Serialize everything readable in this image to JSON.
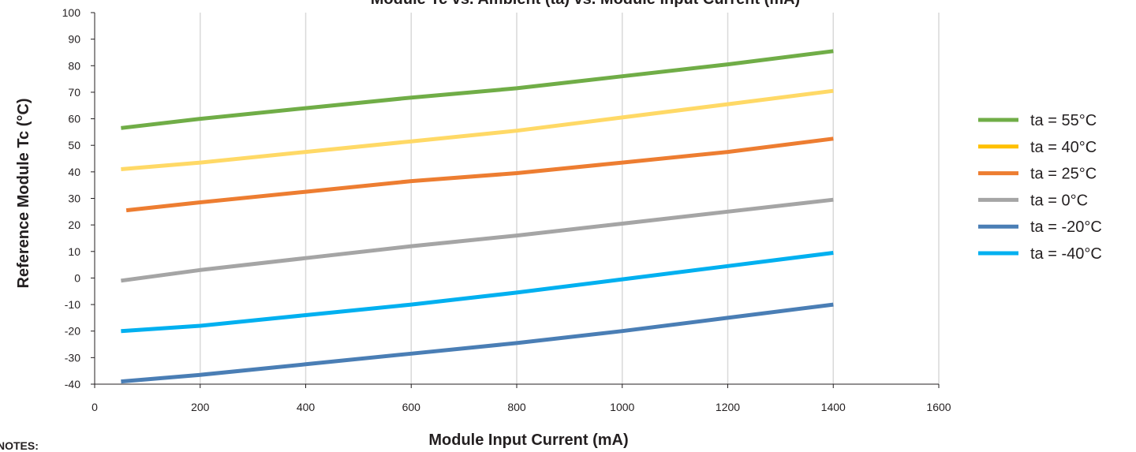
{
  "chart_data": {
    "type": "line",
    "title": "Module Tc vs. Ambient (ta) vs. Module Input Current (mA)",
    "xlabel": "Module Input Current (mA)",
    "ylabel": "Reference Module Tc (°C)",
    "xlim": [
      0,
      1600
    ],
    "ylim": [
      -40,
      100
    ],
    "xticks": [
      "0",
      "200",
      "400",
      "600",
      "800",
      "1000",
      "1200",
      "1400",
      "1600"
    ],
    "yticks": [
      "100",
      "90",
      "80",
      "70",
      "60",
      "50",
      "40",
      "30",
      "20",
      "10",
      "0",
      "-10",
      "-20",
      "-30",
      "-40"
    ],
    "grid": "vertical",
    "legend_position": "right",
    "series": [
      {
        "name": "ta = 55°C",
        "color": "#70ad47",
        "legend_color": "#70ad47",
        "x": [
          50,
          200,
          400,
          600,
          800,
          1000,
          1200,
          1400
        ],
        "y": [
          56.5,
          60,
          64,
          68,
          71.5,
          76,
          80.5,
          85.5
        ]
      },
      {
        "name": "ta = 40°C",
        "color": "#ffd966",
        "legend_color": "#ffc000",
        "x": [
          50,
          200,
          400,
          600,
          800,
          1000,
          1200,
          1400
        ],
        "y": [
          41,
          43.5,
          47.5,
          51.5,
          55.5,
          60.5,
          65.5,
          70.5
        ]
      },
      {
        "name": "ta = 25°C",
        "color": "#ed7d31",
        "legend_color": "#ed7d31",
        "x": [
          60,
          200,
          400,
          600,
          800,
          1000,
          1200,
          1400
        ],
        "y": [
          25.5,
          28.5,
          32.5,
          36.5,
          39.5,
          43.5,
          47.5,
          52.5
        ]
      },
      {
        "name": "ta = 0°C",
        "color": "#a5a5a5",
        "legend_color": "#a5a5a5",
        "x": [
          50,
          200,
          400,
          600,
          800,
          1000,
          1200,
          1400
        ],
        "y": [
          -1,
          3,
          7.5,
          12,
          16,
          20.5,
          25,
          29.5
        ]
      },
      {
        "name": "ta = -20°C",
        "color": "#4a7eb5",
        "legend_color": "#4a7eb5",
        "x": [
          50,
          200,
          400,
          600,
          800,
          1000,
          1200,
          1400
        ],
        "y": [
          -39,
          -36.5,
          -32.5,
          -28.5,
          -24.5,
          -20,
          -15,
          -10
        ]
      },
      {
        "name": "ta = -40°C",
        "color": "#00b0f0",
        "legend_color": "#00b0f0",
        "x": [
          50,
          200,
          300,
          400,
          600,
          800,
          1000,
          1200,
          1400
        ],
        "y": [
          -20,
          -18,
          -16,
          -14,
          -10,
          -5.5,
          -0.5,
          4.5,
          9.5
        ]
      }
    ]
  },
  "notes_label": "NOTES:"
}
